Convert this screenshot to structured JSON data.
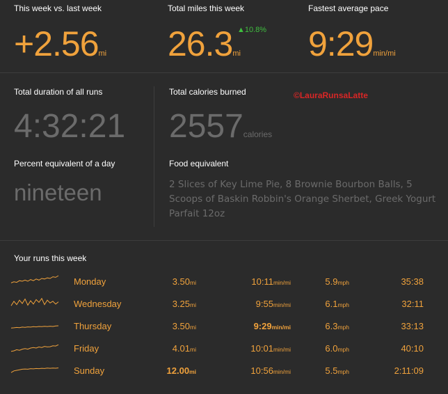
{
  "stats": {
    "week_vs_last": {
      "label": "This week vs. last week",
      "value": "+2.56",
      "unit": "mi"
    },
    "total_miles": {
      "label": "Total miles this week",
      "value": "26.3",
      "unit": "mi",
      "delta": "▲10.8%"
    },
    "fastest_pace": {
      "label": "Fastest average pace",
      "value": "9:29",
      "unit": "min/mi"
    },
    "total_duration": {
      "label": "Total duration of all runs",
      "value": "4:32:21"
    },
    "calories": {
      "label": "Total calories burned",
      "value": "2557",
      "unit": "calories"
    },
    "percent_day": {
      "label": "Percent equivalent of a day",
      "value": "nineteen"
    },
    "food": {
      "label": "Food equivalent",
      "value": "2 Slices of Key Lime Pie, 8 Brownie Bourbon Balls, 5 Scoops of Baskin Robbin's Orange Sherbet, Greek Yogurt Parfait 12oz"
    }
  },
  "watermark": "©LauraRunsaLatte",
  "runs": {
    "title": "Your runs this week",
    "units": {
      "distance": "mi",
      "pace": "min/mi",
      "speed": "mph"
    },
    "rows": [
      {
        "day": "Monday",
        "distance": "3.50",
        "pace": "10:11",
        "speed": "5.9",
        "duration": "35:38",
        "spark": [
          0.35,
          0.45,
          0.4,
          0.55,
          0.5,
          0.6,
          0.5,
          0.65,
          0.55,
          0.7,
          0.6,
          0.75,
          0.7,
          0.8,
          0.75,
          0.9,
          0.85,
          1.0
        ]
      },
      {
        "day": "Wednesday",
        "distance": "3.25",
        "pace": "9:55",
        "speed": "6.1",
        "duration": "32:11",
        "spark": [
          0.3,
          0.7,
          0.4,
          0.8,
          0.5,
          0.9,
          0.35,
          0.75,
          0.45,
          0.85,
          0.6,
          0.95,
          0.4,
          0.8,
          0.55,
          0.7,
          0.45,
          0.65
        ]
      },
      {
        "day": "Thursday",
        "distance": "3.50",
        "pace": "9:29",
        "speed": "6.3",
        "duration": "33:13",
        "best_pace": true,
        "spark": [
          0.3,
          0.32,
          0.35,
          0.33,
          0.38,
          0.36,
          0.4,
          0.38,
          0.42,
          0.4,
          0.44,
          0.42,
          0.45,
          0.43,
          0.46,
          0.44,
          0.48,
          0.5
        ]
      },
      {
        "day": "Friday",
        "distance": "4.01",
        "pace": "10:01",
        "speed": "6.0",
        "duration": "40:10",
        "spark": [
          0.2,
          0.25,
          0.35,
          0.3,
          0.4,
          0.45,
          0.4,
          0.5,
          0.55,
          0.5,
          0.6,
          0.55,
          0.65,
          0.6,
          0.62,
          0.7,
          0.68,
          0.8
        ]
      },
      {
        "day": "Sunday",
        "distance": "12.00",
        "pace": "10:56",
        "speed": "5.5",
        "duration": "2:11:09",
        "best_distance": true,
        "spark": [
          0.3,
          0.45,
          0.5,
          0.55,
          0.6,
          0.62,
          0.6,
          0.65,
          0.63,
          0.66,
          0.65,
          0.68,
          0.66,
          0.7,
          0.68,
          0.7,
          0.69,
          0.72
        ]
      }
    ]
  },
  "colors": {
    "accent": "#f0a23c",
    "positive": "#3fbf3f",
    "muted": "#6b6b6b",
    "highlight": "#ffd21a",
    "watermark": "#d92626"
  }
}
